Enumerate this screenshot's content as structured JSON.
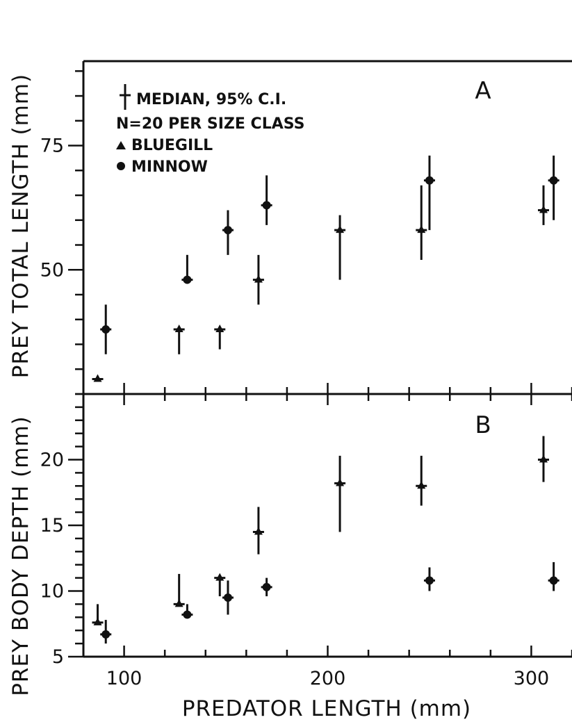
{
  "chart_data": [
    {
      "panel": "A",
      "type": "scatter",
      "ylabel": "PREY TOTAL LENGTH (mm)",
      "xlim": [
        80,
        320
      ],
      "ylim": [
        25,
        92
      ],
      "yticks_labeled": [
        50,
        75
      ],
      "legend": {
        "position": "top-left",
        "lines": [
          "MEDIAN, 95% C.I.",
          "N=20 PER SIZE CLASS",
          "BLUEGILL",
          "MINNOW"
        ]
      },
      "series": [
        {
          "name": "BLUEGILL",
          "marker": "triangle",
          "points": [
            {
              "x": 87,
              "y": 28,
              "lo": 28,
              "hi": 28
            },
            {
              "x": 127,
              "y": 38,
              "lo": 33,
              "hi": 38
            },
            {
              "x": 147,
              "y": 38,
              "lo": 34,
              "hi": 38
            },
            {
              "x": 166,
              "y": 48,
              "lo": 43,
              "hi": 53
            },
            {
              "x": 206,
              "y": 58,
              "lo": 48,
              "hi": 61
            },
            {
              "x": 246,
              "y": 58,
              "lo": 52,
              "hi": 67
            },
            {
              "x": 306,
              "y": 62,
              "lo": 59,
              "hi": 67
            }
          ]
        },
        {
          "name": "MINNOW",
          "marker": "circle",
          "points": [
            {
              "x": 91,
              "y": 38,
              "lo": 33,
              "hi": 43
            },
            {
              "x": 131,
              "y": 48,
              "lo": 48,
              "hi": 53
            },
            {
              "x": 151,
              "y": 58,
              "lo": 53,
              "hi": 62
            },
            {
              "x": 170,
              "y": 63,
              "lo": 59,
              "hi": 69
            },
            {
              "x": 250,
              "y": 68,
              "lo": 58,
              "hi": 73
            },
            {
              "x": 311,
              "y": 68,
              "lo": 60,
              "hi": 73
            }
          ]
        }
      ]
    },
    {
      "panel": "B",
      "type": "scatter",
      "xlabel": "PREDATOR LENGTH (mm)",
      "ylabel": "PREY BODY DEPTH (mm)",
      "xlim": [
        80,
        320
      ],
      "ylim": [
        5,
        25
      ],
      "xticks_labeled": [
        100,
        200,
        300
      ],
      "yticks_labeled": [
        5,
        10,
        15,
        20
      ],
      "series": [
        {
          "name": "BLUEGILL",
          "marker": "triangle",
          "points": [
            {
              "x": 87,
              "y": 7.6,
              "lo": 7.6,
              "hi": 9.0
            },
            {
              "x": 127,
              "y": 9.0,
              "lo": 9.0,
              "hi": 11.3
            },
            {
              "x": 147,
              "y": 11.0,
              "lo": 9.6,
              "hi": 11.2
            },
            {
              "x": 166,
              "y": 14.5,
              "lo": 12.8,
              "hi": 16.4
            },
            {
              "x": 206,
              "y": 18.2,
              "lo": 14.5,
              "hi": 20.3
            },
            {
              "x": 246,
              "y": 18.0,
              "lo": 16.5,
              "hi": 20.3
            },
            {
              "x": 306,
              "y": 20.0,
              "lo": 18.3,
              "hi": 21.8
            }
          ]
        },
        {
          "name": "MINNOW",
          "marker": "circle",
          "points": [
            {
              "x": 91,
              "y": 6.7,
              "lo": 6.0,
              "hi": 7.8
            },
            {
              "x": 131,
              "y": 8.2,
              "lo": 8.0,
              "hi": 9.0
            },
            {
              "x": 151,
              "y": 9.5,
              "lo": 8.2,
              "hi": 10.8
            },
            {
              "x": 170,
              "y": 10.3,
              "lo": 9.6,
              "hi": 11.0
            },
            {
              "x": 250,
              "y": 10.8,
              "lo": 10.0,
              "hi": 11.8
            },
            {
              "x": 311,
              "y": 10.8,
              "lo": 10.0,
              "hi": 12.2
            }
          ]
        }
      ]
    }
  ]
}
